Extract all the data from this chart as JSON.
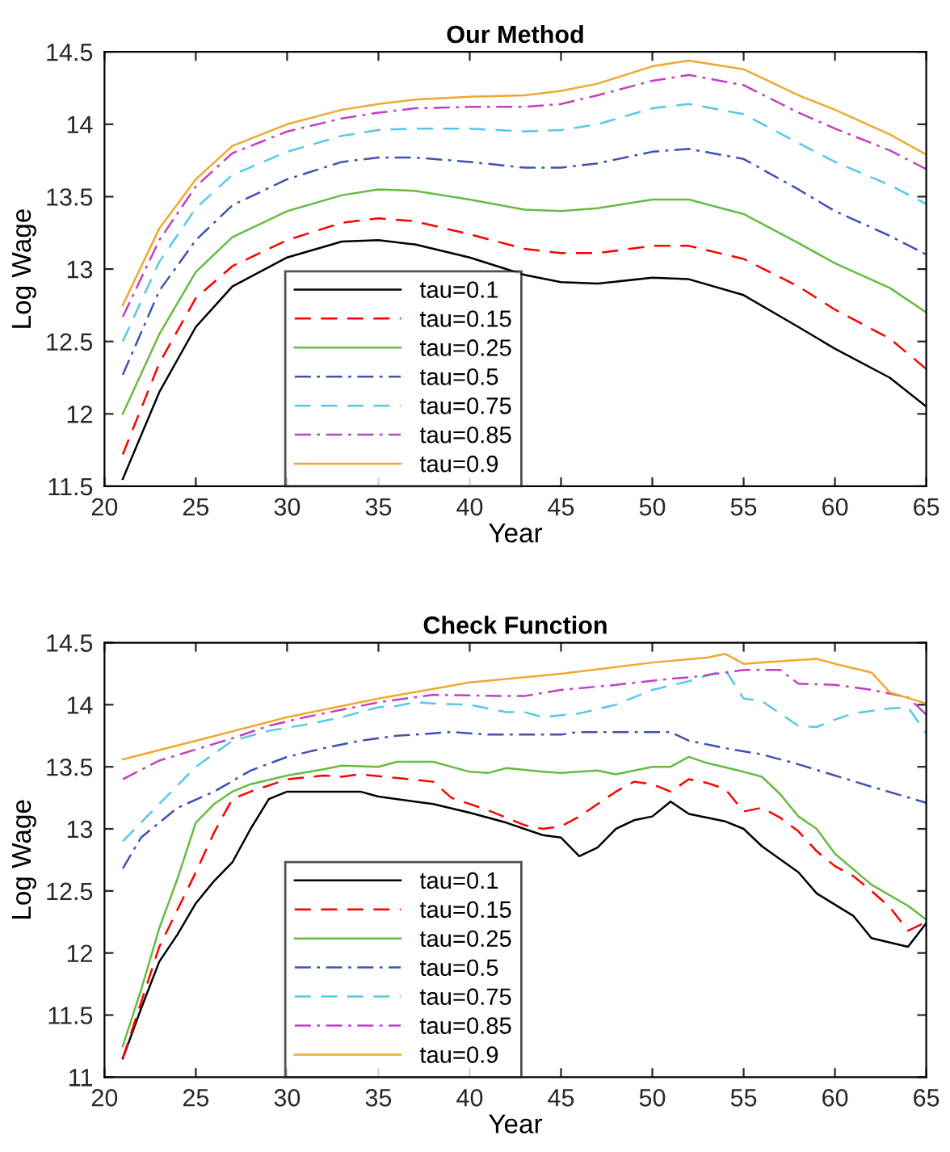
{
  "chart_data": [
    {
      "type": "line",
      "title": "Our Method",
      "xlabel": "Year",
      "ylabel": "Log Wage",
      "xlim": [
        20,
        65
      ],
      "ylim": [
        11.5,
        14.5
      ],
      "xticks": [
        20,
        25,
        30,
        35,
        40,
        45,
        50,
        55,
        60,
        65
      ],
      "yticks": [
        11.5,
        12,
        12.5,
        13,
        13.5,
        14,
        14.5
      ],
      "grid": false,
      "legend": "bottom left",
      "marker": "none",
      "x": [
        21,
        23,
        25,
        27,
        30,
        33,
        35,
        37,
        40,
        43,
        45,
        47,
        50,
        52,
        55,
        58,
        60,
        63,
        65
      ],
      "series": [
        {
          "name": "tau=0.1",
          "color": "#000000",
          "line_style": "solid",
          "values": [
            11.55,
            12.15,
            12.6,
            12.88,
            13.08,
            13.19,
            13.2,
            13.17,
            13.08,
            12.96,
            12.91,
            12.9,
            12.94,
            12.93,
            12.82,
            12.6,
            12.45,
            12.25,
            12.05
          ]
        },
        {
          "name": "tau=0.15",
          "color": "#ff0000",
          "line_style": "dashed",
          "values": [
            11.72,
            12.35,
            12.8,
            13.02,
            13.2,
            13.32,
            13.35,
            13.33,
            13.24,
            13.14,
            13.11,
            13.11,
            13.16,
            13.16,
            13.07,
            12.88,
            12.72,
            12.52,
            12.31
          ]
        },
        {
          "name": "tau=0.25",
          "color": "#66bb44",
          "line_style": "solid",
          "values": [
            12.0,
            12.55,
            12.98,
            13.22,
            13.4,
            13.51,
            13.55,
            13.54,
            13.48,
            13.41,
            13.4,
            13.42,
            13.48,
            13.48,
            13.38,
            13.18,
            13.04,
            12.87,
            12.7
          ]
        },
        {
          "name": "tau=0.5",
          "color": "#3f51b5",
          "line_style": "dashdot",
          "values": [
            12.27,
            12.85,
            13.2,
            13.44,
            13.62,
            13.74,
            13.77,
            13.77,
            13.74,
            13.7,
            13.7,
            13.73,
            13.81,
            13.83,
            13.76,
            13.55,
            13.4,
            13.23,
            13.1
          ]
        },
        {
          "name": "tau=0.75",
          "color": "#55c8e8",
          "line_style": "dashed",
          "values": [
            12.5,
            13.05,
            13.42,
            13.65,
            13.81,
            13.92,
            13.96,
            13.97,
            13.97,
            13.95,
            13.96,
            14.0,
            14.11,
            14.14,
            14.07,
            13.87,
            13.74,
            13.58,
            13.45
          ]
        },
        {
          "name": "tau=0.85",
          "color": "#c040c0",
          "line_style": "dashdot",
          "values": [
            12.67,
            13.2,
            13.57,
            13.8,
            13.95,
            14.04,
            14.08,
            14.11,
            14.12,
            14.12,
            14.14,
            14.2,
            14.3,
            14.34,
            14.27,
            14.08,
            13.97,
            13.82,
            13.69
          ]
        },
        {
          "name": "tau=0.9",
          "color": "#f0a830",
          "line_style": "solid",
          "values": [
            12.75,
            13.28,
            13.62,
            13.85,
            14.0,
            14.1,
            14.14,
            14.17,
            14.19,
            14.2,
            14.23,
            14.28,
            14.4,
            14.44,
            14.38,
            14.2,
            14.1,
            13.93,
            13.79
          ]
        }
      ]
    },
    {
      "type": "line",
      "title": "Check Function",
      "xlabel": "Year",
      "ylabel": "Log Wage",
      "xlim": [
        20,
        65
      ],
      "ylim": [
        11,
        14.5
      ],
      "xticks": [
        20,
        25,
        30,
        35,
        40,
        45,
        50,
        55,
        60,
        65
      ],
      "yticks": [
        11,
        11.5,
        12,
        12.5,
        13,
        13.5,
        14,
        14.5
      ],
      "grid": false,
      "legend": "bottom left",
      "marker": "none",
      "series": [
        {
          "name": "tau=0.1",
          "color": "#000000",
          "line_style": "solid",
          "x": [
            21,
            22,
            23,
            24,
            25,
            26,
            27,
            28,
            29,
            30,
            34,
            35,
            38,
            40,
            42,
            44,
            45,
            46,
            47,
            48,
            49,
            50,
            51,
            52,
            54,
            55,
            56,
            58,
            59,
            61,
            62,
            64,
            65
          ],
          "values": [
            11.15,
            11.55,
            11.93,
            12.15,
            12.4,
            12.58,
            12.73,
            13.0,
            13.24,
            13.3,
            13.3,
            13.26,
            13.2,
            13.13,
            13.05,
            12.95,
            12.93,
            12.78,
            12.85,
            13.0,
            13.07,
            13.1,
            13.22,
            13.12,
            13.06,
            13.0,
            12.86,
            12.65,
            12.48,
            12.3,
            12.12,
            12.05,
            12.24
          ]
        },
        {
          "name": "tau=0.15",
          "color": "#ff0000",
          "line_style": "dashed",
          "x": [
            21,
            22,
            23,
            24,
            25,
            26,
            27,
            28,
            30,
            32,
            33,
            34,
            36,
            38,
            39,
            41,
            43,
            44,
            45,
            46,
            47,
            48,
            49,
            50,
            51,
            52,
            53,
            54,
            55,
            56,
            57,
            58,
            59,
            60,
            61,
            62,
            63,
            64,
            65
          ],
          "values": [
            11.15,
            11.6,
            12.05,
            12.35,
            12.65,
            12.97,
            13.24,
            13.3,
            13.4,
            13.43,
            13.42,
            13.44,
            13.41,
            13.38,
            13.25,
            13.15,
            13.03,
            13.0,
            13.02,
            13.1,
            13.2,
            13.3,
            13.38,
            13.36,
            13.3,
            13.4,
            13.37,
            13.32,
            13.14,
            13.17,
            13.09,
            12.98,
            12.82,
            12.7,
            12.62,
            12.5,
            12.37,
            12.18,
            12.25
          ]
        },
        {
          "name": "tau=0.25",
          "color": "#66bb44",
          "line_style": "solid",
          "x": [
            21,
            22,
            23,
            24,
            25,
            26,
            27,
            28,
            30,
            32,
            33,
            35,
            36,
            38,
            40,
            41,
            42,
            44,
            45,
            47,
            48,
            50,
            51,
            52,
            53,
            55,
            56,
            57,
            58,
            59,
            60,
            62,
            64,
            65
          ],
          "values": [
            11.25,
            11.7,
            12.2,
            12.6,
            13.05,
            13.2,
            13.3,
            13.36,
            13.43,
            13.48,
            13.51,
            13.5,
            13.54,
            13.54,
            13.46,
            13.45,
            13.49,
            13.46,
            13.45,
            13.47,
            13.44,
            13.5,
            13.5,
            13.58,
            13.53,
            13.46,
            13.42,
            13.28,
            13.1,
            13.0,
            12.8,
            12.55,
            12.38,
            12.27
          ]
        },
        {
          "name": "tau=0.5",
          "color": "#3f51b5",
          "line_style": "dashdot",
          "x": [
            21,
            22,
            24,
            26,
            28,
            30,
            32,
            34,
            36,
            38,
            39,
            41,
            45,
            46,
            51,
            52,
            54,
            56,
            58,
            60,
            62,
            65
          ],
          "values": [
            12.68,
            12.93,
            13.17,
            13.3,
            13.47,
            13.58,
            13.65,
            13.71,
            13.75,
            13.77,
            13.78,
            13.76,
            13.76,
            13.78,
            13.78,
            13.71,
            13.65,
            13.6,
            13.52,
            13.43,
            13.34,
            13.21
          ]
        },
        {
          "name": "tau=0.75",
          "color": "#55c8e8",
          "line_style": "dashed",
          "x": [
            21,
            23,
            25,
            27,
            29,
            31,
            33,
            35,
            36,
            37,
            38,
            40,
            41,
            42,
            43,
            44,
            46,
            48,
            50,
            52,
            54,
            55,
            56,
            58,
            59,
            60,
            61,
            63,
            64,
            65
          ],
          "values": [
            12.9,
            13.2,
            13.5,
            13.71,
            13.79,
            13.84,
            13.9,
            13.98,
            13.99,
            14.02,
            14.01,
            14.0,
            13.97,
            13.94,
            13.94,
            13.9,
            13.93,
            14.0,
            14.12,
            14.19,
            14.28,
            14.05,
            14.03,
            13.83,
            13.82,
            13.88,
            13.93,
            13.97,
            13.98,
            13.77
          ]
        },
        {
          "name": "tau=0.85",
          "color": "#c040c0",
          "line_style": "dashdot",
          "x": [
            21,
            23,
            25,
            27,
            29,
            31,
            33,
            35,
            37,
            38,
            42,
            43,
            45,
            48,
            51,
            52,
            54,
            55,
            57,
            58,
            60,
            62,
            64,
            65
          ],
          "values": [
            13.4,
            13.55,
            13.64,
            13.73,
            13.83,
            13.9,
            13.96,
            14.02,
            14.06,
            14.08,
            14.07,
            14.07,
            14.12,
            14.16,
            14.21,
            14.22,
            14.26,
            14.28,
            14.28,
            14.17,
            14.16,
            14.12,
            14.06,
            13.92
          ]
        },
        {
          "name": "tau=0.9",
          "color": "#f0a830",
          "line_style": "solid",
          "x": [
            21,
            25,
            30,
            35,
            40,
            45,
            50,
            53,
            54,
            55,
            57,
            59,
            60,
            62,
            63,
            65
          ],
          "values": [
            13.56,
            13.71,
            13.9,
            14.05,
            14.18,
            14.25,
            14.34,
            14.38,
            14.41,
            14.33,
            14.35,
            14.37,
            14.33,
            14.26,
            14.1,
            14.01
          ]
        }
      ]
    }
  ]
}
